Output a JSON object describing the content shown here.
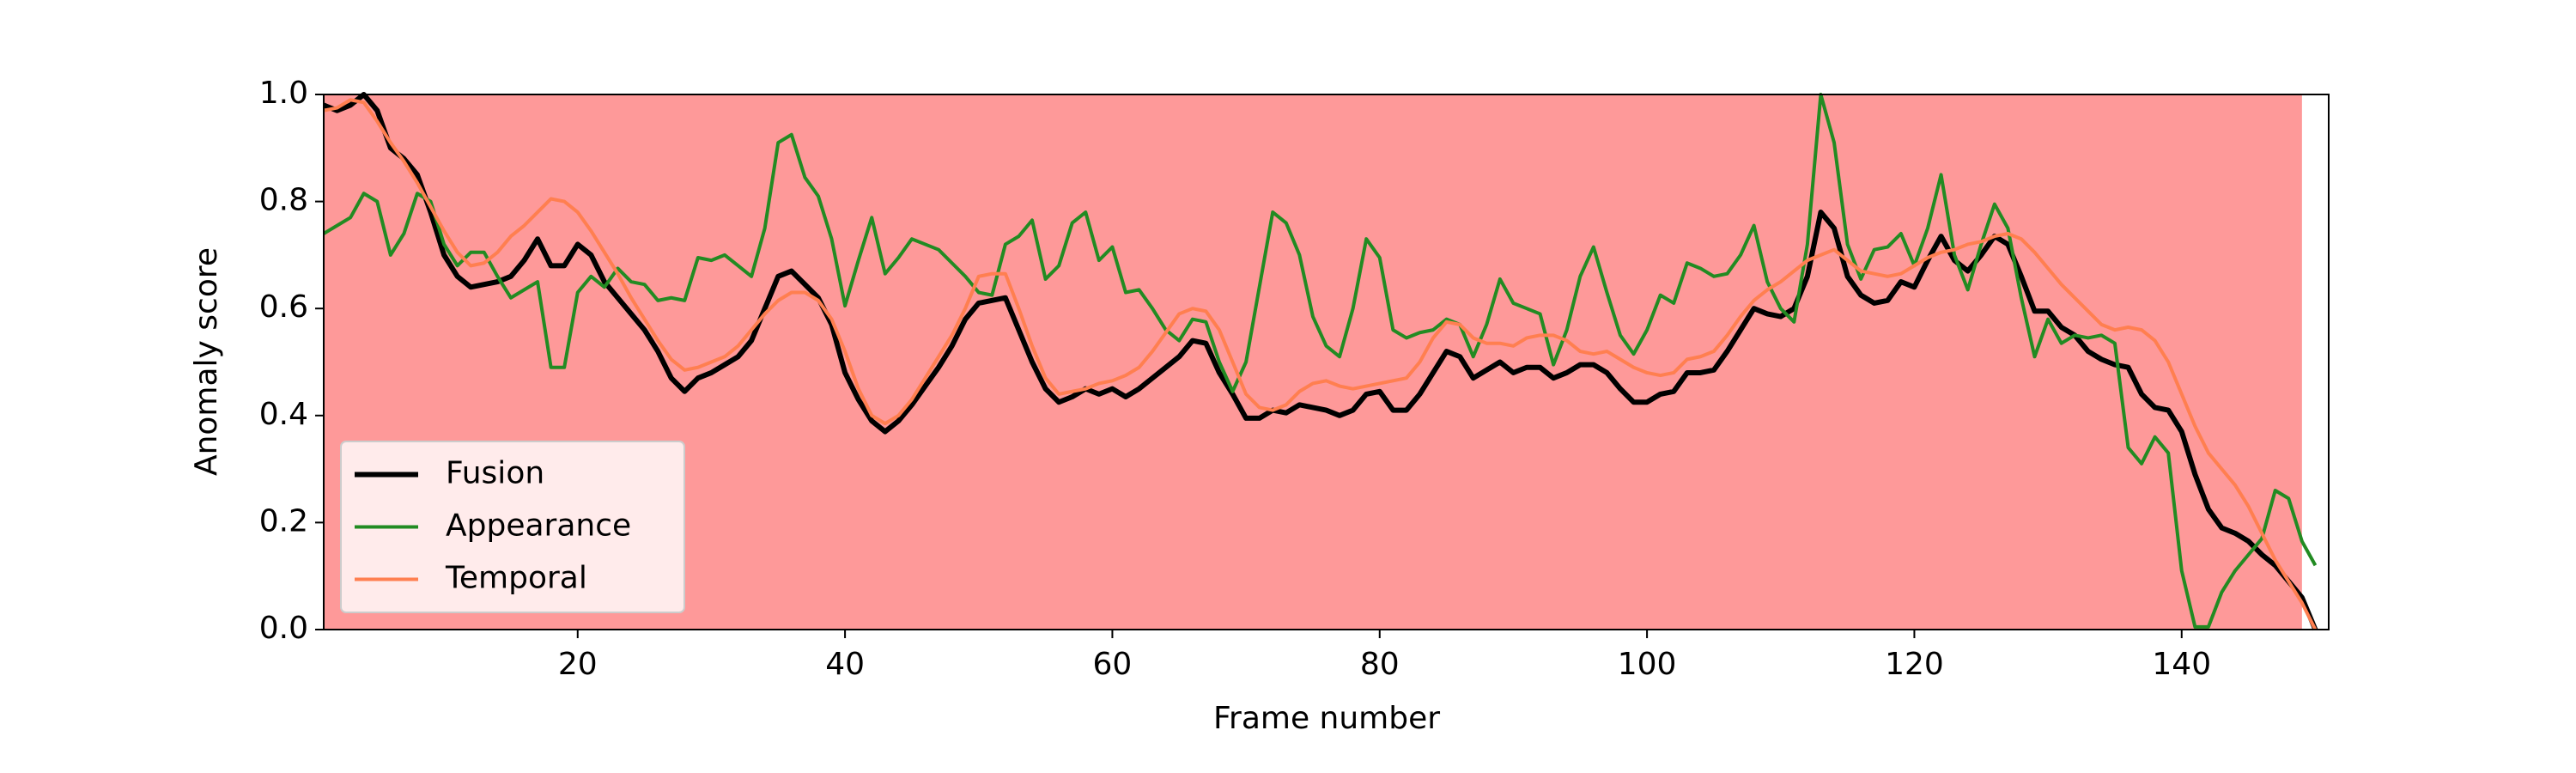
{
  "chart_data": {
    "type": "line",
    "xlabel": "Frame number",
    "ylabel": "Anomaly score",
    "x": [
      1,
      2,
      3,
      4,
      5,
      6,
      7,
      8,
      9,
      10,
      11,
      12,
      13,
      14,
      15,
      16,
      17,
      18,
      19,
      20,
      21,
      22,
      23,
      24,
      25,
      26,
      27,
      28,
      29,
      30,
      31,
      32,
      33,
      34,
      35,
      36,
      37,
      38,
      39,
      40,
      41,
      42,
      43,
      44,
      45,
      46,
      47,
      48,
      49,
      50,
      51,
      52,
      53,
      54,
      55,
      56,
      57,
      58,
      59,
      60,
      61,
      62,
      63,
      64,
      65,
      66,
      67,
      68,
      69,
      70,
      71,
      72,
      73,
      74,
      75,
      76,
      77,
      78,
      79,
      80,
      81,
      82,
      83,
      84,
      85,
      86,
      87,
      88,
      89,
      90,
      91,
      92,
      93,
      94,
      95,
      96,
      97,
      98,
      99,
      100,
      101,
      102,
      103,
      104,
      105,
      106,
      107,
      108,
      109,
      110,
      111,
      112,
      113,
      114,
      115,
      116,
      117,
      118,
      119,
      120,
      121,
      122,
      123,
      124,
      125,
      126,
      127,
      128,
      129,
      130,
      131,
      132,
      133,
      134,
      135,
      136,
      137,
      138,
      139,
      140,
      141,
      142,
      143,
      144,
      145,
      146,
      147,
      148,
      149,
      150
    ],
    "series": [
      {
        "name": "Fusion",
        "color": "#000000",
        "width": 6,
        "values": [
          0.98,
          0.97,
          0.98,
          1.0,
          0.97,
          0.9,
          0.88,
          0.85,
          0.78,
          0.7,
          0.66,
          0.64,
          0.645,
          0.65,
          0.66,
          0.69,
          0.73,
          0.68,
          0.68,
          0.72,
          0.7,
          0.65,
          0.62,
          0.59,
          0.56,
          0.52,
          0.47,
          0.445,
          0.47,
          0.48,
          0.495,
          0.51,
          0.54,
          0.6,
          0.66,
          0.67,
          0.645,
          0.62,
          0.57,
          0.48,
          0.43,
          0.39,
          0.37,
          0.39,
          0.42,
          0.455,
          0.49,
          0.53,
          0.58,
          0.61,
          0.615,
          0.62,
          0.56,
          0.5,
          0.45,
          0.425,
          0.435,
          0.45,
          0.44,
          0.45,
          0.435,
          0.45,
          0.47,
          0.49,
          0.51,
          0.54,
          0.535,
          0.48,
          0.44,
          0.395,
          0.395,
          0.41,
          0.405,
          0.42,
          0.415,
          0.41,
          0.4,
          0.41,
          0.44,
          0.445,
          0.41,
          0.41,
          0.44,
          0.48,
          0.52,
          0.51,
          0.47,
          0.485,
          0.5,
          0.48,
          0.49,
          0.49,
          0.47,
          0.48,
          0.495,
          0.495,
          0.48,
          0.45,
          0.425,
          0.425,
          0.44,
          0.445,
          0.48,
          0.48,
          0.485,
          0.52,
          0.56,
          0.6,
          0.59,
          0.585,
          0.6,
          0.66,
          0.78,
          0.75,
          0.66,
          0.625,
          0.61,
          0.615,
          0.65,
          0.64,
          0.69,
          0.735,
          0.69,
          0.67,
          0.7,
          0.735,
          0.72,
          0.66,
          0.595,
          0.595,
          0.565,
          0.55,
          0.52,
          0.505,
          0.495,
          0.49,
          0.44,
          0.415,
          0.41,
          0.37,
          0.29,
          0.225,
          0.19,
          0.18,
          0.165,
          0.14,
          0.12,
          0.09,
          0.06,
          0.0
        ]
      },
      {
        "name": "Appearance",
        "color": "#228b22",
        "width": 4,
        "values": [
          0.74,
          0.755,
          0.77,
          0.815,
          0.8,
          0.7,
          0.74,
          0.815,
          0.8,
          0.72,
          0.68,
          0.705,
          0.705,
          0.66,
          0.62,
          0.635,
          0.65,
          0.49,
          0.49,
          0.63,
          0.66,
          0.64,
          0.675,
          0.65,
          0.645,
          0.615,
          0.62,
          0.615,
          0.695,
          0.69,
          0.7,
          0.68,
          0.66,
          0.75,
          0.91,
          0.925,
          0.845,
          0.81,
          0.73,
          0.605,
          0.69,
          0.77,
          0.665,
          0.695,
          0.73,
          0.72,
          0.71,
          0.685,
          0.66,
          0.63,
          0.625,
          0.72,
          0.735,
          0.765,
          0.655,
          0.68,
          0.76,
          0.78,
          0.69,
          0.715,
          0.63,
          0.635,
          0.6,
          0.56,
          0.54,
          0.58,
          0.575,
          0.5,
          0.445,
          0.5,
          0.64,
          0.78,
          0.76,
          0.7,
          0.585,
          0.53,
          0.51,
          0.6,
          0.73,
          0.695,
          0.56,
          0.545,
          0.555,
          0.56,
          0.58,
          0.57,
          0.51,
          0.57,
          0.655,
          0.61,
          0.6,
          0.59,
          0.495,
          0.56,
          0.66,
          0.715,
          0.63,
          0.55,
          0.515,
          0.56,
          0.625,
          0.61,
          0.685,
          0.675,
          0.66,
          0.665,
          0.7,
          0.755,
          0.65,
          0.6,
          0.575,
          0.72,
          1.0,
          0.91,
          0.72,
          0.655,
          0.71,
          0.715,
          0.74,
          0.68,
          0.75,
          0.85,
          0.7,
          0.635,
          0.72,
          0.795,
          0.75,
          0.62,
          0.51,
          0.58,
          0.535,
          0.55,
          0.545,
          0.55,
          0.535,
          0.34,
          0.31,
          0.36,
          0.33,
          0.11,
          0.005,
          0.005,
          0.07,
          0.11,
          0.14,
          0.17,
          0.26,
          0.245,
          0.165,
          0.12
        ]
      },
      {
        "name": "Temporal",
        "color": "#ff7f50",
        "width": 4,
        "values": [
          0.97,
          0.975,
          0.99,
          0.985,
          0.95,
          0.91,
          0.875,
          0.835,
          0.79,
          0.745,
          0.705,
          0.68,
          0.685,
          0.705,
          0.735,
          0.755,
          0.78,
          0.805,
          0.8,
          0.78,
          0.745,
          0.705,
          0.665,
          0.62,
          0.58,
          0.54,
          0.505,
          0.485,
          0.49,
          0.5,
          0.51,
          0.53,
          0.56,
          0.59,
          0.615,
          0.63,
          0.63,
          0.615,
          0.58,
          0.52,
          0.45,
          0.4,
          0.385,
          0.4,
          0.43,
          0.47,
          0.51,
          0.55,
          0.6,
          0.66,
          0.665,
          0.665,
          0.6,
          0.53,
          0.47,
          0.44,
          0.445,
          0.45,
          0.46,
          0.465,
          0.475,
          0.49,
          0.52,
          0.555,
          0.59,
          0.6,
          0.595,
          0.56,
          0.5,
          0.44,
          0.415,
          0.41,
          0.42,
          0.445,
          0.46,
          0.465,
          0.455,
          0.45,
          0.455,
          0.46,
          0.465,
          0.47,
          0.5,
          0.545,
          0.575,
          0.57,
          0.545,
          0.535,
          0.535,
          0.53,
          0.545,
          0.55,
          0.55,
          0.54,
          0.52,
          0.515,
          0.52,
          0.505,
          0.49,
          0.48,
          0.475,
          0.48,
          0.505,
          0.51,
          0.52,
          0.55,
          0.585,
          0.615,
          0.635,
          0.65,
          0.67,
          0.69,
          0.7,
          0.71,
          0.69,
          0.67,
          0.665,
          0.66,
          0.665,
          0.68,
          0.695,
          0.705,
          0.71,
          0.72,
          0.725,
          0.735,
          0.74,
          0.73,
          0.705,
          0.675,
          0.645,
          0.62,
          0.595,
          0.57,
          0.56,
          0.565,
          0.56,
          0.54,
          0.5,
          0.44,
          0.38,
          0.33,
          0.3,
          0.27,
          0.23,
          0.18,
          0.13,
          0.09,
          0.05,
          0.0
        ]
      }
    ],
    "xlim": [
      1,
      151
    ],
    "ylim": [
      0,
      1
    ],
    "xticks": [
      20,
      40,
      60,
      80,
      100,
      120,
      140
    ],
    "yticks": [
      {
        "value": 0,
        "label": "0.0"
      },
      0.2,
      0.4,
      0.6,
      0.8,
      {
        "value": 1,
        "label": "1.0"
      }
    ],
    "shaded_span": [
      1,
      149
    ],
    "shade_color": "#fe9999",
    "legend": "lower left"
  }
}
